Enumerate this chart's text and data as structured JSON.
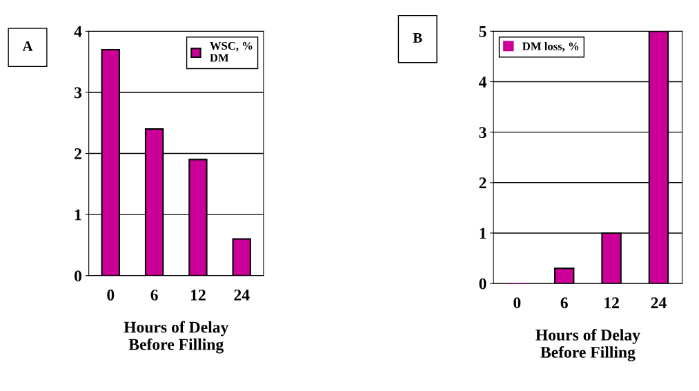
{
  "chart_data": [
    {
      "type": "bar",
      "title": "A",
      "categories": [
        "0",
        "6",
        "12",
        "24"
      ],
      "xlabel": "Hours of Delay\nBefore Filling",
      "series": [
        {
          "name": "WSC, %\nDM",
          "color": "#cc0099",
          "values": [
            3.7,
            2.4,
            1.9,
            0.6
          ]
        }
      ],
      "ylim": [
        0,
        4
      ],
      "yticks": [
        0,
        1,
        2,
        3,
        4
      ],
      "grid": "y",
      "legend": "top right"
    },
    {
      "type": "bar",
      "title": "B",
      "categories": [
        "0",
        "6",
        "12",
        "24"
      ],
      "xlabel": "Hours of Delay\nBefore Filling",
      "series": [
        {
          "name": "DM loss, %",
          "color": "#cc0099",
          "values": [
            0,
            0.3,
            1.0,
            5.0
          ]
        }
      ],
      "ylim": [
        0,
        5
      ],
      "yticks": [
        0,
        1,
        2,
        3,
        4,
        5
      ],
      "grid": "y",
      "legend": "top left"
    }
  ]
}
